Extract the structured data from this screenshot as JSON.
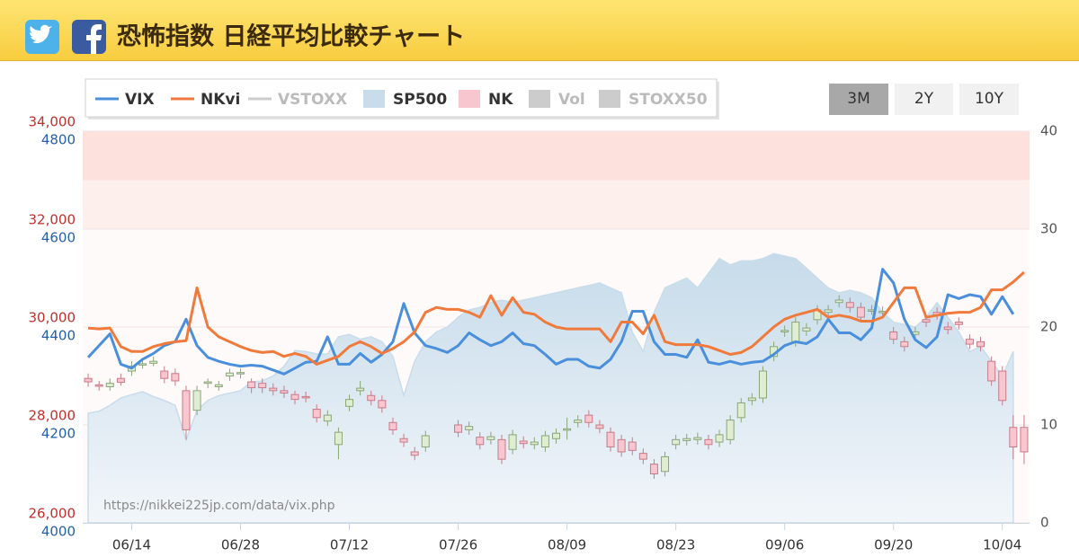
{
  "header": {
    "title": "恐怖指数 日経平均比較チャート"
  },
  "buttons": [
    "3M",
    "2Y",
    "10Y"
  ],
  "chart_data": {
    "type": "combo",
    "source_note": "https://nikkei225jp.com/data/vix.php",
    "categories": [
      null,
      null,
      null,
      null,
      "06/14",
      null,
      null,
      null,
      null,
      null,
      null,
      null,
      null,
      null,
      "06/28",
      null,
      null,
      null,
      null,
      null,
      null,
      null,
      null,
      null,
      "07/12",
      null,
      null,
      null,
      null,
      null,
      null,
      null,
      null,
      null,
      "07/26",
      null,
      null,
      null,
      null,
      null,
      null,
      null,
      null,
      null,
      "08/09",
      null,
      null,
      null,
      null,
      null,
      null,
      null,
      null,
      null,
      "08/23",
      null,
      null,
      null,
      null,
      null,
      null,
      null,
      null,
      null,
      "09/06",
      null,
      null,
      null,
      null,
      null,
      null,
      null,
      null,
      null,
      "09/20",
      null,
      null,
      null,
      null,
      null,
      null,
      null,
      null,
      null,
      "10/04",
      null,
      null
    ],
    "ylim": [
      26000,
      34000
    ],
    "yticks": [
      {
        "value": 26000,
        "label": "26,000"
      },
      {
        "value": 28000,
        "label": "28,000"
      },
      {
        "value": 30000,
        "label": "30,000"
      },
      {
        "value": 32000,
        "label": "32,000"
      },
      {
        "value": 34000,
        "label": "34,000"
      }
    ],
    "y3lim": [
      4000,
      4800
    ],
    "y3ticks": [
      4000,
      4200,
      4400,
      4600,
      4800
    ],
    "y2lim": [
      0,
      40
    ],
    "y2ticks": [
      0,
      10,
      20,
      30,
      40
    ],
    "grid": true,
    "series": [
      {
        "name": "VIX",
        "type": "line",
        "axis": "y2",
        "color": "#4a8fdc",
        "values": [
          16.9,
          18.1,
          19.3,
          16.2,
          15.8,
          16.7,
          17.3,
          18.1,
          18.5,
          20.8,
          18.1,
          16.9,
          16.5,
          16.2,
          16.0,
          16.1,
          16.0,
          15.6,
          15.2,
          15.8,
          16.4,
          16.5,
          19.0,
          16.2,
          16.2,
          17.3,
          16.4,
          17.2,
          18.5,
          22.4,
          19.4,
          18.1,
          17.8,
          17.4,
          18.1,
          19.4,
          18.7,
          18.1,
          18.5,
          19.4,
          18.3,
          18.1,
          17.2,
          16.2,
          16.7,
          16.7,
          16.0,
          15.8,
          16.7,
          18.5,
          21.6,
          21.6,
          18.5,
          17.2,
          17.2,
          16.9,
          18.7,
          16.4,
          16.2,
          16.5,
          16.2,
          16.4,
          16.5,
          17.2,
          18.1,
          18.5,
          18.3,
          19.0,
          20.8,
          19.4,
          19.4,
          18.7,
          19.9,
          25.9,
          24.5,
          20.8,
          18.7,
          17.9,
          19.0,
          23.3,
          22.9,
          23.3,
          23.1,
          21.3,
          23.1,
          21.3,
          null
        ]
      },
      {
        "name": "NKvi",
        "type": "line",
        "axis": "y2",
        "color": "#f07a3c",
        "values": [
          19.9,
          19.8,
          19.9,
          18.0,
          17.5,
          17.5,
          18.0,
          18.3,
          18.5,
          18.6,
          24.0,
          20.0,
          19.0,
          18.5,
          18.0,
          17.6,
          17.4,
          17.5,
          17.0,
          17.3,
          17.0,
          16.2,
          16.6,
          17.0,
          18.0,
          18.5,
          18.0,
          17.3,
          17.8,
          18.5,
          19.5,
          21.5,
          22.0,
          21.8,
          21.8,
          21.5,
          21.0,
          23.2,
          21.2,
          23.0,
          21.5,
          21.3,
          20.5,
          20.0,
          19.8,
          19.8,
          19.8,
          19.8,
          18.5,
          20.5,
          20.5,
          19.3,
          21.2,
          18.5,
          18.2,
          18.2,
          18.2,
          18.0,
          17.6,
          17.2,
          17.4,
          18.0,
          19.0,
          20.0,
          20.8,
          21.2,
          21.5,
          21.8,
          21.0,
          21.2,
          21.0,
          20.6,
          20.6,
          21.0,
          22.5,
          24.0,
          24.0,
          21.0,
          21.2,
          21.4,
          21.5,
          21.5,
          22.0,
          23.8,
          23.8,
          24.6,
          25.6
        ]
      },
      {
        "name": "VSTOXX",
        "type": "line",
        "color": "#c8cdd4",
        "visible": false
      },
      {
        "name": "SP500",
        "type": "area",
        "axis": "y3",
        "color": "#c9dcea",
        "values": [
          4224,
          4228,
          4240,
          4255,
          4262,
          4268,
          4258,
          4250,
          4240,
          4169,
          4230,
          4250,
          4260,
          4265,
          4270,
          4288,
          4290,
          4300,
          4320,
          4352,
          4350,
          4345,
          4345,
          4380,
          4385,
          4375,
          4380,
          4370,
          4340,
          4260,
          4330,
          4370,
          4390,
          4400,
          4420,
          4435,
          4440,
          4450,
          4455,
          4450,
          4455,
          4460,
          4465,
          4470,
          4475,
          4480,
          4485,
          4490,
          4480,
          4470,
          4389,
          4350,
          4430,
          4480,
          4490,
          4500,
          4480,
          4510,
          4540,
          4527,
          4535,
          4535,
          4540,
          4550,
          4545,
          4540,
          4520,
          4500,
          4480,
          4470,
          4475,
          4470,
          4460,
          4430,
          4410,
          4405,
          4400,
          4420,
          4450,
          4420,
          4390,
          4350,
          4360,
          4330,
          4300,
          4350,
          null
        ]
      },
      {
        "name": "NK",
        "type": "candlestick",
        "color": "#f7c6cf",
        "open": [
          28950,
          28820,
          28780,
          28950,
          29100,
          29230,
          29260,
          29100,
          29050,
          28700,
          28300,
          28850,
          28780,
          29000,
          29050,
          28880,
          28850,
          28750,
          28700,
          28620,
          28580,
          28320,
          28080,
          27600,
          28380,
          28700,
          28600,
          28500,
          28050,
          27720,
          27450,
          27550,
          null,
          null,
          28000,
          27900,
          27750,
          27700,
          27700,
          27500,
          27670,
          27600,
          27550,
          27720,
          27920,
          28050,
          28200,
          28000,
          27850,
          27700,
          27650,
          27420,
          27200,
          27050,
          27600,
          27680,
          27700,
          27700,
          27650,
          27700,
          28150,
          28500,
          28550,
          29400,
          29900,
          29700,
          29920,
          30150,
          30300,
          30500,
          30500,
          30400,
          30350,
          30300,
          29900,
          29700,
          29850,
          30150,
          30300,
          30000,
          30100,
          29750,
          29700,
          29300,
          29100,
          27950,
          27950
        ],
        "high": [
          29050,
          28900,
          28950,
          29050,
          29300,
          29350,
          29400,
          29200,
          29150,
          28800,
          28800,
          28950,
          28900,
          29150,
          29150,
          28950,
          28950,
          28850,
          28800,
          28700,
          28680,
          28420,
          28300,
          27950,
          28620,
          28900,
          28700,
          28600,
          28150,
          27820,
          27550,
          27880,
          null,
          null,
          28100,
          28070,
          27850,
          27860,
          27800,
          27900,
          27770,
          27750,
          27880,
          27930,
          28150,
          28200,
          28300,
          28100,
          27950,
          27800,
          27750,
          27520,
          27300,
          27450,
          27800,
          27820,
          27840,
          27800,
          27900,
          28200,
          28550,
          28650,
          29200,
          29700,
          30030,
          30200,
          30080,
          30450,
          30450,
          30650,
          30600,
          30500,
          30450,
          30420,
          30000,
          29800,
          30000,
          30250,
          30400,
          30100,
          30200,
          29850,
          29800,
          29400,
          29200,
          28200,
          28200
        ],
        "low": [
          28780,
          28700,
          28700,
          28800,
          29000,
          29150,
          29200,
          28850,
          28800,
          27700,
          28200,
          28750,
          28700,
          28900,
          28950,
          28650,
          28650,
          28600,
          28550,
          28420,
          28460,
          28050,
          27980,
          27300,
          28280,
          28600,
          28400,
          28250,
          27800,
          27550,
          27280,
          27450,
          null,
          null,
          27750,
          27800,
          27500,
          27600,
          27200,
          27400,
          27520,
          27500,
          27450,
          27620,
          27700,
          27950,
          27950,
          27830,
          27450,
          27350,
          27380,
          27200,
          26900,
          26950,
          27500,
          27580,
          27600,
          27500,
          27550,
          27600,
          28050,
          28400,
          28450,
          29300,
          29800,
          29600,
          29820,
          30050,
          30200,
          30400,
          30300,
          30100,
          30250,
          30200,
          29650,
          29500,
          29750,
          30000,
          30150,
          29850,
          29950,
          29550,
          29500,
          28800,
          28400,
          27300,
          27200
        ],
        "close": [
          28880,
          28790,
          28850,
          28870,
          29200,
          29250,
          29300,
          28950,
          28900,
          27900,
          28700,
          28880,
          28820,
          29060,
          29070,
          28760,
          28760,
          28700,
          28650,
          28520,
          28560,
          28150,
          28200,
          27850,
          28520,
          28750,
          28500,
          28350,
          27900,
          27650,
          27380,
          27780,
          null,
          null,
          27850,
          27970,
          27600,
          27760,
          27300,
          27800,
          27620,
          27650,
          27780,
          27830,
          27920,
          28100,
          28050,
          27930,
          27550,
          27450,
          27480,
          27300,
          27000,
          27350,
          27700,
          27720,
          27740,
          27600,
          27800,
          28100,
          28450,
          28550,
          29100,
          29600,
          29930,
          30100,
          29980,
          30350,
          30350,
          30550,
          30400,
          30200,
          30350,
          30320,
          29750,
          29600,
          29900,
          30100,
          30250,
          29950,
          30050,
          29650,
          29600,
          28900,
          28500,
          27550,
          27450
        ]
      },
      {
        "name": "Vol",
        "type": "bar",
        "color": "#c8c8c8",
        "visible": false
      },
      {
        "name": "STOXX50",
        "type": "area",
        "color": "#c8c8c8",
        "visible": false
      }
    ]
  }
}
